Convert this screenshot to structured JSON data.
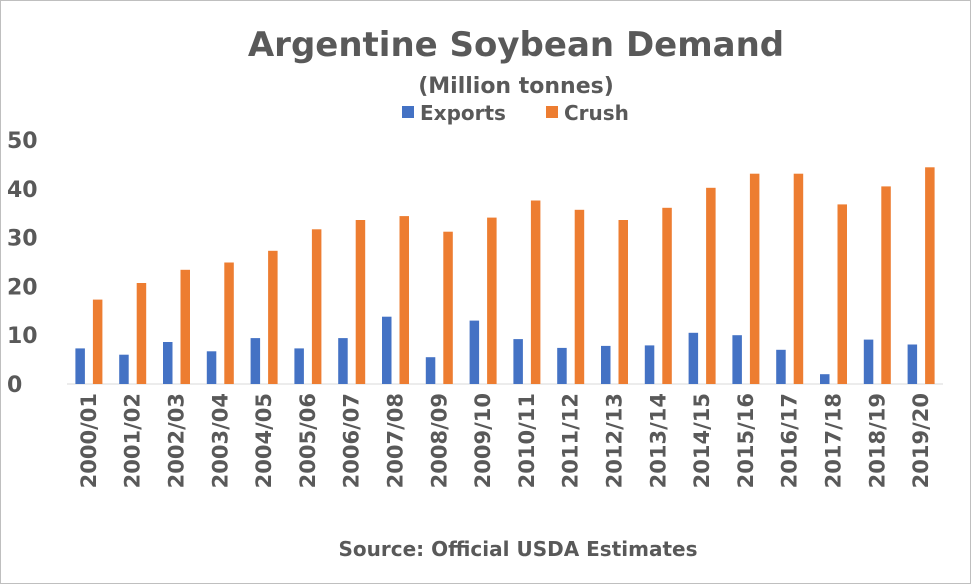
{
  "chart_data": {
    "type": "bar",
    "title": "Argentine Soybean Demand",
    "subtitle": "(Million tonnes)",
    "source": "Source: Official USDA Estimates",
    "categories": [
      "2000/01",
      "2001/02",
      "2002/03",
      "2003/04",
      "2004/05",
      "2005/06",
      "2006/07",
      "2007/08",
      "2008/09",
      "2009/10",
      "2010/11",
      "2011/12",
      "2012/13",
      "2013/14",
      "2014/15",
      "2015/16",
      "2016/17",
      "2017/18",
      "2018/19",
      "2019/20"
    ],
    "series": [
      {
        "name": "Exports",
        "color": "#4472c4",
        "values": [
          7.3,
          6.0,
          8.6,
          6.7,
          9.4,
          7.3,
          9.4,
          13.8,
          5.5,
          13.0,
          9.2,
          7.4,
          7.8,
          7.9,
          10.5,
          10.0,
          7.0,
          2.0,
          9.1,
          8.1
        ]
      },
      {
        "name": "Crush",
        "color": "#ed7d31",
        "values": [
          17.3,
          20.7,
          23.4,
          24.9,
          27.3,
          31.7,
          33.6,
          34.4,
          31.2,
          34.1,
          37.6,
          35.7,
          33.6,
          36.1,
          40.2,
          43.1,
          43.1,
          36.8,
          40.5,
          44.4
        ]
      }
    ],
    "yticks": [
      "0",
      "10",
      "20",
      "30",
      "40",
      "50"
    ],
    "ylim": [
      0,
      50
    ],
    "grid": false,
    "legend_position": "top-center"
  }
}
